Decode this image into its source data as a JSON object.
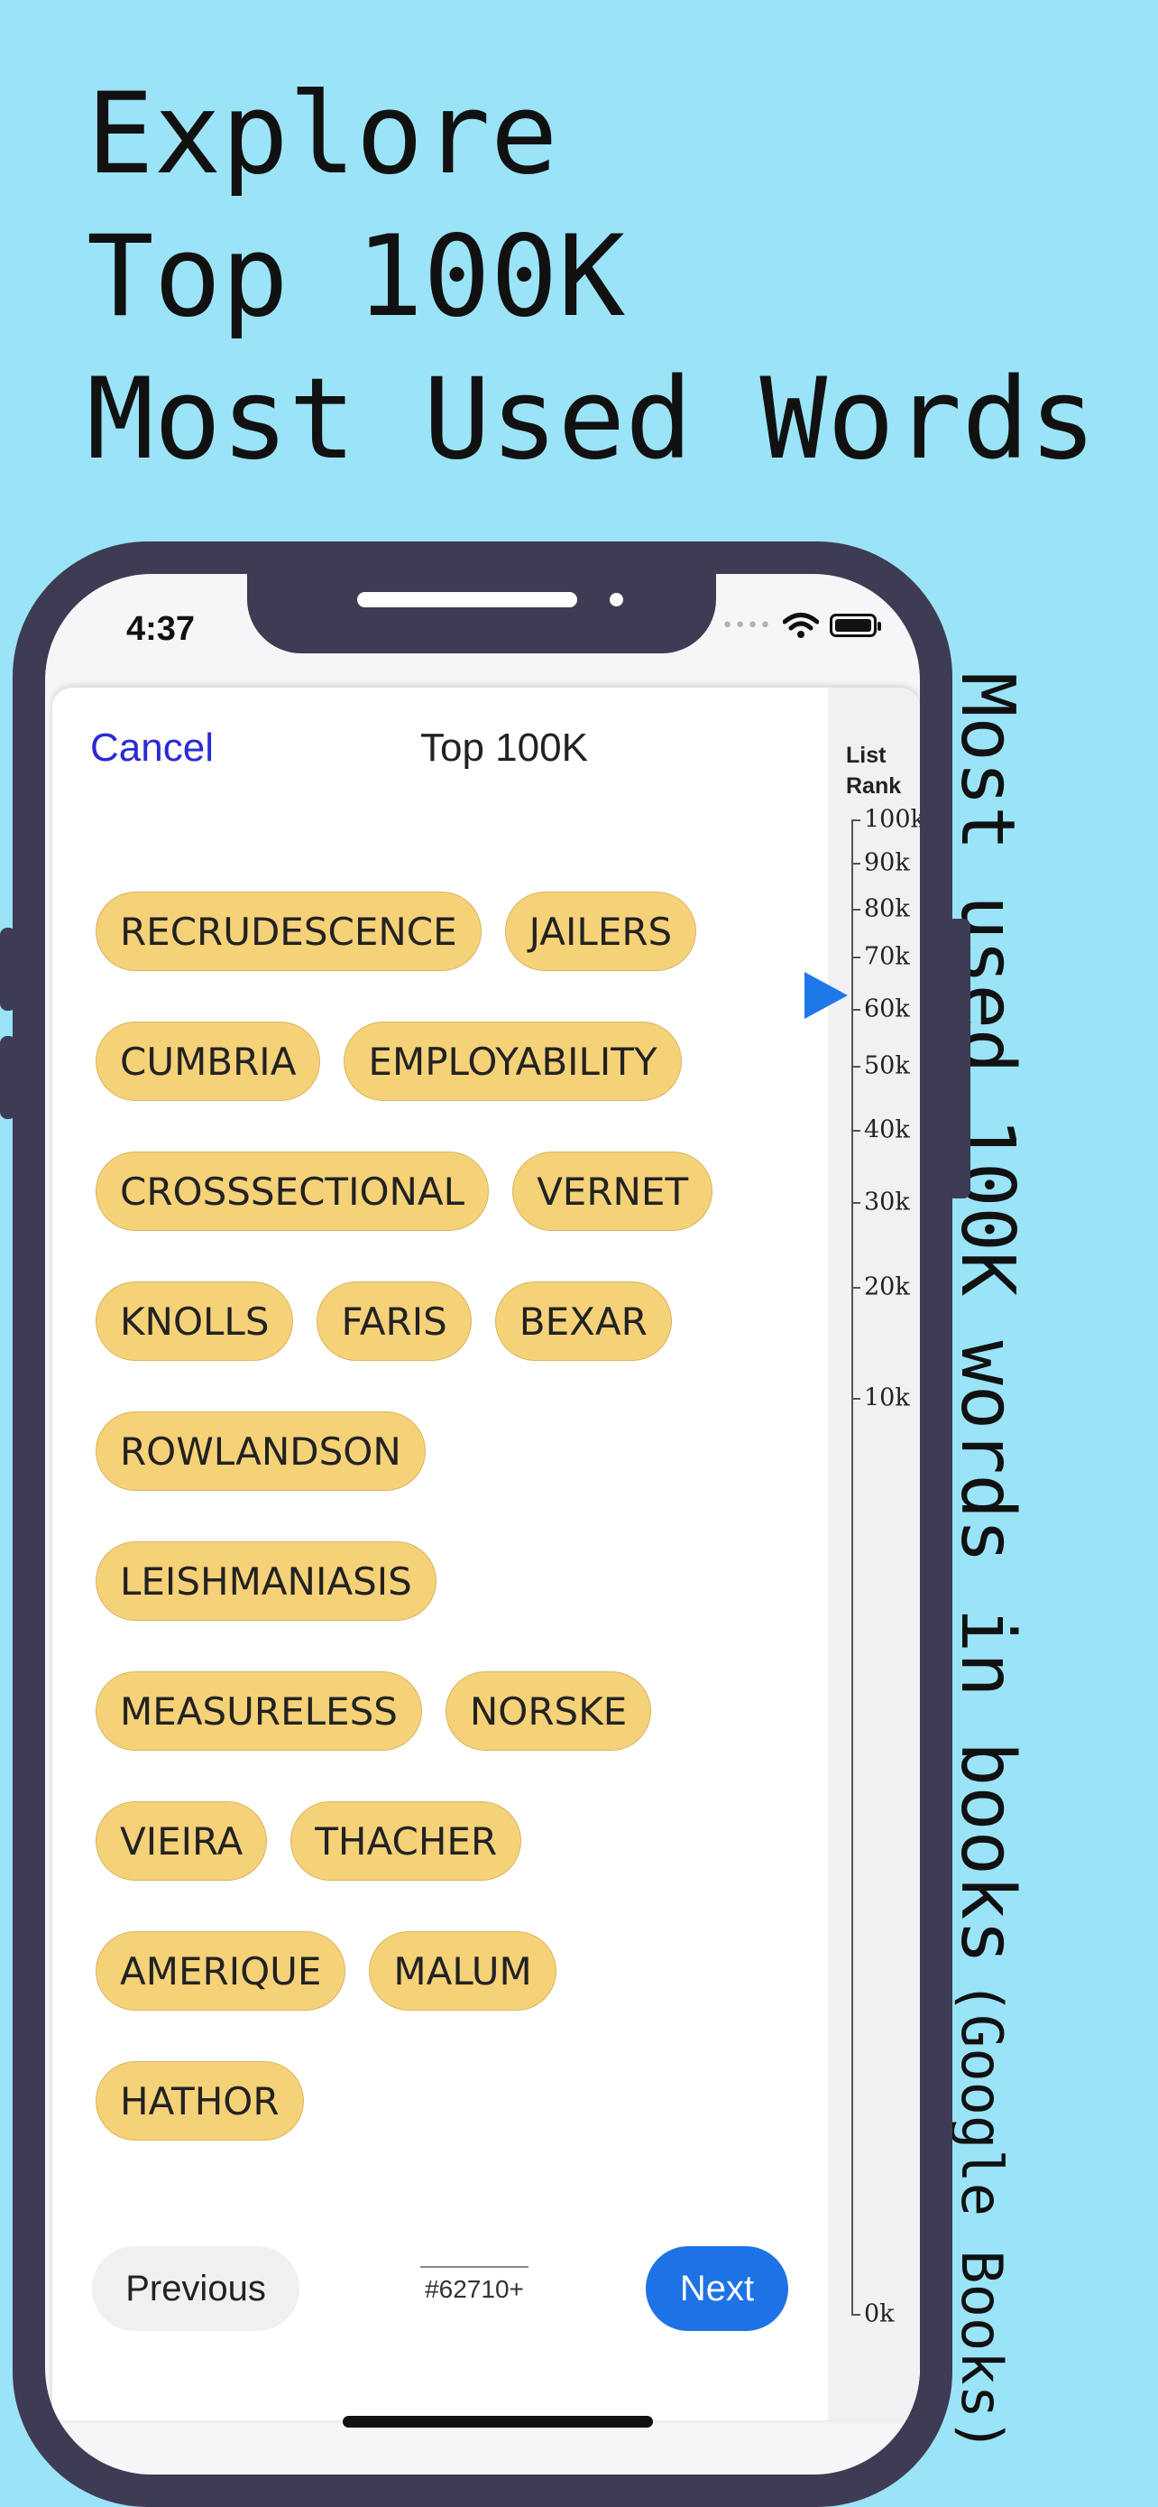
{
  "promo": {
    "headline": [
      "Explore",
      "Top 100K",
      "Most Used Words"
    ],
    "side_caption": "Most used 100K words in books",
    "side_caption_small": "(Google Books)"
  },
  "status_bar": {
    "time": "4:37",
    "icons": [
      "cellular-signal-icon",
      "wifi-icon",
      "battery-icon"
    ]
  },
  "sheet": {
    "cancel_label": "Cancel",
    "title": "Top 100K",
    "word_rows": [
      [
        "RECRUDESCENCE",
        "JAILERS"
      ],
      [
        "CUMBRIA",
        "EMPLOYABILITY"
      ],
      [
        "CROSSSECTIONAL",
        "VERNET"
      ],
      [
        "KNOLLS",
        "FARIS",
        "BEXAR"
      ],
      [
        "ROWLANDSON"
      ],
      [
        "LEISHMANIASIS"
      ],
      [
        "MEASURELESS",
        "NORSKE"
      ],
      [
        "VIEIRA",
        "THACHER"
      ],
      [
        "AMERIQUE",
        "MALUM"
      ],
      [
        "HATHOR"
      ]
    ],
    "previous_label": "Previous",
    "next_label": "Next",
    "rank_readout": "#62710+"
  },
  "rank_slider": {
    "title_line1": "List",
    "title_line2": "Rank",
    "ticks": [
      {
        "label": "100k",
        "value": 100000
      },
      {
        "label": "90k",
        "value": 90000
      },
      {
        "label": "80k",
        "value": 80000
      },
      {
        "label": "70k",
        "value": 70000
      },
      {
        "label": "60k",
        "value": 60000
      },
      {
        "label": "50k",
        "value": 50000
      },
      {
        "label": "40k",
        "value": 40000
      },
      {
        "label": "30k",
        "value": 30000
      },
      {
        "label": "20k",
        "value": 20000
      },
      {
        "label": "10k",
        "value": 10000
      },
      {
        "label": "0k",
        "value": 0
      }
    ],
    "current_value": 62710,
    "marker_color": "#1f78e8"
  }
}
